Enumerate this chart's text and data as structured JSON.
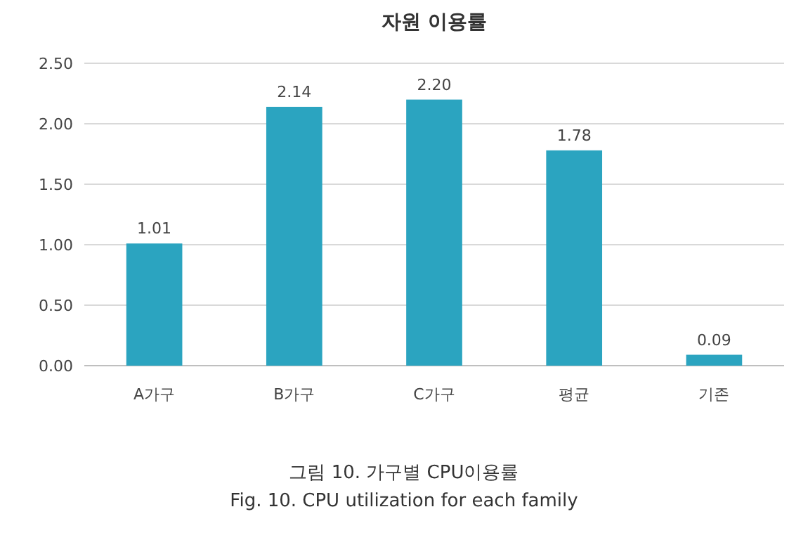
{
  "chart_data": {
    "type": "bar",
    "title": "자원 이용률",
    "categories": [
      "A가구",
      "B가구",
      "C가구",
      "평균",
      "기존"
    ],
    "values": [
      1.01,
      2.14,
      2.2,
      1.78,
      0.09
    ],
    "color": "#2ba4c0",
    "ylim": [
      0,
      2.5
    ],
    "yticks": [
      {
        "value": 0,
        "label": "0.00"
      },
      {
        "value": 0.5,
        "label": "0.50"
      },
      {
        "value": 1,
        "label": "1.00"
      },
      {
        "value": 1.5,
        "label": "1.50"
      },
      {
        "value": 2,
        "label": "2.00"
      },
      {
        "value": 2.5,
        "label": "2.50"
      }
    ],
    "grid": "y",
    "value_labels": [
      "1.01",
      "2.14",
      "2.20",
      "1.78",
      "0.09"
    ],
    "annotations": [
      "그림 10. 가구별 CPU이용률",
      "Fig. 10. CPU utilization for each family"
    ]
  }
}
